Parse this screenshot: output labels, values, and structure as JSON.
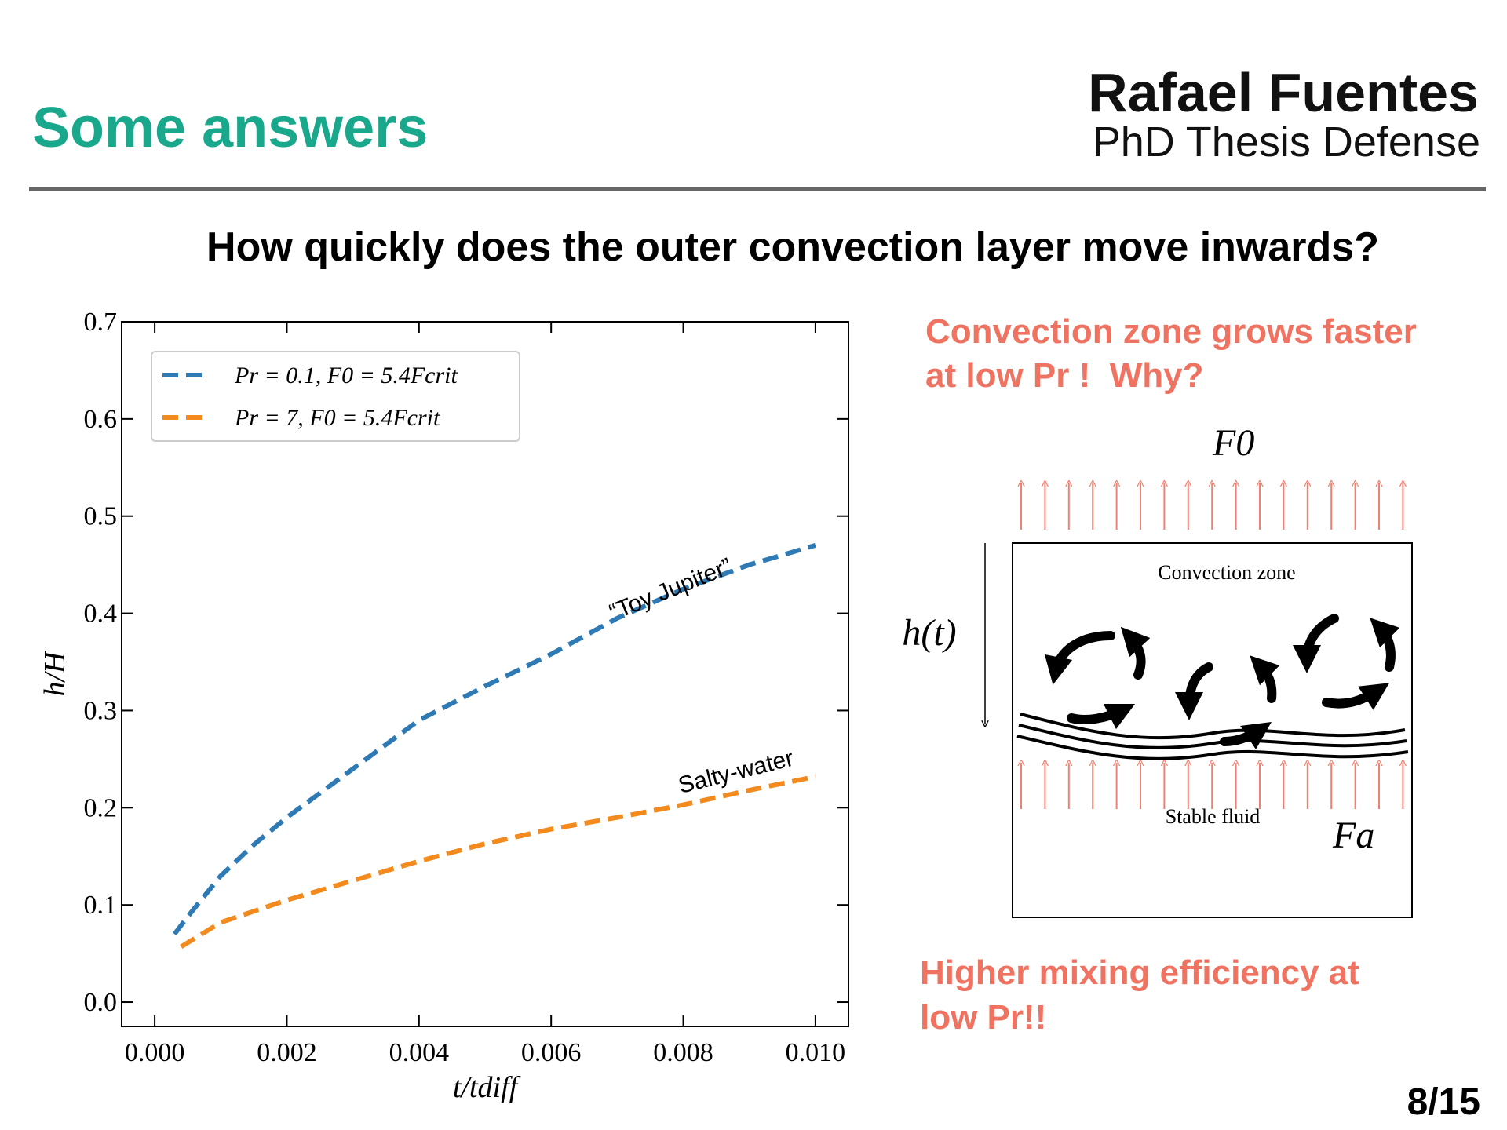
{
  "header": {
    "title": "Some answers",
    "name": "Rafael Fuentes",
    "subtitle": "PhD Thesis Defense"
  },
  "question": "How quickly does the outer convection layer move inwards?",
  "notes": {
    "top": [
      "Convection zone grows faster",
      "at low Pr !  Why?"
    ],
    "bottom": [
      "Higher mixing efficiency at",
      "low Pr!!"
    ]
  },
  "diagram": {
    "top_flux": "F0",
    "height": "h(t)",
    "upper_region": "Convection zone",
    "lower_region": "Stable fluid",
    "bottom_flux": "Fa"
  },
  "page_number": "8/15",
  "chart_data": {
    "type": "line",
    "x_label": "t/tdiff",
    "y_label": "h/H",
    "xlim": [
      -0.0005,
      0.0105
    ],
    "ylim": [
      -0.025,
      0.7
    ],
    "xticks": [
      {
        "value": 0,
        "label": "0.000"
      },
      0.002,
      0.004,
      0.006,
      0.008,
      {
        "value": 0.01,
        "label": "0.010"
      }
    ],
    "yticks": [
      {
        "value": 0,
        "label": "0.0"
      },
      0.1,
      0.2,
      0.3,
      0.4,
      0.5,
      0.6,
      0.7
    ],
    "legend": "upper left",
    "series": [
      {
        "name": "Pr = 0.1, F0 = 5.4Fcrit",
        "color": "#2e7ab5",
        "x": [
          0.0003,
          0.0005,
          0.001,
          0.0015,
          0.002,
          0.003,
          0.004,
          0.005,
          0.006,
          0.007,
          0.008,
          0.009,
          0.01
        ],
        "values": [
          0.07,
          0.088,
          0.13,
          0.162,
          0.19,
          0.24,
          0.29,
          0.325,
          0.358,
          0.395,
          0.425,
          0.45,
          0.47
        ]
      },
      {
        "name": "Pr = 7, F0 = 5.4Fcrit",
        "color": "#f28a1e",
        "x": [
          0.0004,
          0.001,
          0.002,
          0.003,
          0.004,
          0.005,
          0.006,
          0.007,
          0.008,
          0.009,
          0.01
        ],
        "values": [
          0.057,
          0.082,
          0.105,
          0.125,
          0.145,
          0.163,
          0.178,
          0.19,
          0.203,
          0.218,
          0.232
        ]
      }
    ],
    "annotations": [
      {
        "text": "“Toy Jupiter”"
      },
      {
        "text": "Salty-water"
      }
    ]
  }
}
